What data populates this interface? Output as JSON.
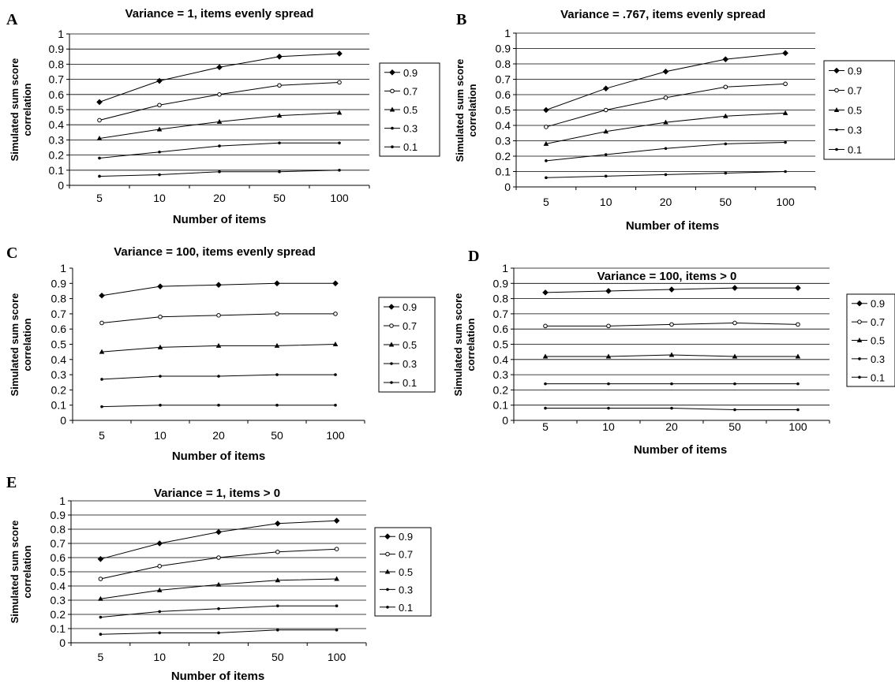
{
  "colors": {
    "line": "#000000",
    "grid": "#000000",
    "background": "#ffffff"
  },
  "chart_data": [
    {
      "panel": "A",
      "type": "line",
      "title": "Variance = 1, items evenly spread",
      "xlabel": "Number of items",
      "ylabel": [
        "Simulated sum score",
        "correlation"
      ],
      "categories": [
        "5",
        "10",
        "20",
        "50",
        "100"
      ],
      "yticks": [
        "0",
        "0.1",
        "0.2",
        "0.3",
        "0.4",
        "0.5",
        "0.6",
        "0.7",
        "0.8",
        "0.9",
        "1"
      ],
      "ylim": [
        0,
        1
      ],
      "grid": true,
      "legend_position": "right",
      "series": [
        {
          "name": "0.9",
          "marker": "diamond",
          "values": [
            0.55,
            0.69,
            0.78,
            0.85,
            0.87
          ]
        },
        {
          "name": "0.7",
          "marker": "circle",
          "values": [
            0.43,
            0.53,
            0.6,
            0.66,
            0.68
          ]
        },
        {
          "name": "0.5",
          "marker": "triangle",
          "values": [
            0.31,
            0.37,
            0.42,
            0.46,
            0.48
          ]
        },
        {
          "name": "0.3",
          "marker": "dot",
          "values": [
            0.18,
            0.22,
            0.26,
            0.28,
            0.28
          ]
        },
        {
          "name": "0.1",
          "marker": "dot",
          "values": [
            0.06,
            0.07,
            0.09,
            0.09,
            0.1
          ]
        }
      ]
    },
    {
      "panel": "B",
      "type": "line",
      "title": "Variance = .767, items evenly spread",
      "xlabel": "Number of items",
      "ylabel": [
        "Simulated sum score",
        "correlation"
      ],
      "categories": [
        "5",
        "10",
        "20",
        "50",
        "100"
      ],
      "yticks": [
        "0",
        "0.1",
        "0.2",
        "0.3",
        "0.4",
        "0.5",
        "0.6",
        "0.7",
        "0.8",
        "0.9",
        "1"
      ],
      "ylim": [
        0,
        1
      ],
      "grid": true,
      "legend_position": "right",
      "series": [
        {
          "name": "0.9",
          "marker": "diamond",
          "values": [
            0.5,
            0.64,
            0.75,
            0.83,
            0.87
          ]
        },
        {
          "name": "0.7",
          "marker": "circle",
          "values": [
            0.39,
            0.5,
            0.58,
            0.65,
            0.67
          ]
        },
        {
          "name": "0.5",
          "marker": "triangle",
          "values": [
            0.28,
            0.36,
            0.42,
            0.46,
            0.48
          ]
        },
        {
          "name": "0.3",
          "marker": "dot",
          "values": [
            0.17,
            0.21,
            0.25,
            0.28,
            0.29
          ]
        },
        {
          "name": "0.1",
          "marker": "dot",
          "values": [
            0.06,
            0.07,
            0.08,
            0.09,
            0.1
          ]
        }
      ]
    },
    {
      "panel": "C",
      "type": "line",
      "title": "Variance = 100, items evenly spread",
      "xlabel": "Number of items",
      "ylabel": [
        "Simulated sum score",
        "correlation"
      ],
      "categories": [
        "5",
        "10",
        "20",
        "50",
        "100"
      ],
      "yticks": [
        "0",
        "0.1",
        "0.2",
        "0.3",
        "0.4",
        "0.5",
        "0.6",
        "0.7",
        "0.8",
        "0.9",
        "1"
      ],
      "ylim": [
        0,
        1
      ],
      "grid": false,
      "legend_position": "right",
      "series": [
        {
          "name": "0.9",
          "marker": "diamond",
          "values": [
            0.82,
            0.88,
            0.89,
            0.9,
            0.9
          ]
        },
        {
          "name": "0.7",
          "marker": "circle",
          "values": [
            0.64,
            0.68,
            0.69,
            0.7,
            0.7
          ]
        },
        {
          "name": "0.5",
          "marker": "triangle",
          "values": [
            0.45,
            0.48,
            0.49,
            0.49,
            0.5
          ]
        },
        {
          "name": "0.3",
          "marker": "dot",
          "values": [
            0.27,
            0.29,
            0.29,
            0.3,
            0.3
          ]
        },
        {
          "name": "0.1",
          "marker": "dot",
          "values": [
            0.09,
            0.1,
            0.1,
            0.1,
            0.1
          ]
        }
      ]
    },
    {
      "panel": "D",
      "type": "line",
      "title": "Variance = 100, items > 0",
      "xlabel": "Number of items",
      "ylabel": [
        "Simulated sum score",
        "correlation"
      ],
      "categories": [
        "5",
        "10",
        "20",
        "50",
        "100"
      ],
      "yticks": [
        "0",
        "0.1",
        "0.2",
        "0.3",
        "0.4",
        "0.5",
        "0.6",
        "0.7",
        "0.8",
        "0.9",
        "1"
      ],
      "ylim": [
        0,
        1
      ],
      "grid": true,
      "legend_position": "right",
      "series": [
        {
          "name": "0.9",
          "marker": "diamond",
          "values": [
            0.84,
            0.85,
            0.86,
            0.87,
            0.87
          ]
        },
        {
          "name": "0.7",
          "marker": "circle",
          "values": [
            0.62,
            0.62,
            0.63,
            0.64,
            0.63
          ]
        },
        {
          "name": "0.5",
          "marker": "triangle",
          "values": [
            0.42,
            0.42,
            0.43,
            0.42,
            0.42
          ]
        },
        {
          "name": "0.3",
          "marker": "dot",
          "values": [
            0.24,
            0.24,
            0.24,
            0.24,
            0.24
          ]
        },
        {
          "name": "0.1",
          "marker": "dot",
          "values": [
            0.08,
            0.08,
            0.08,
            0.07,
            0.07
          ]
        }
      ]
    },
    {
      "panel": "E",
      "type": "line",
      "title": "Variance = 1, items > 0",
      "xlabel": "Number of items",
      "ylabel": [
        "Simulated sum score",
        "correlation"
      ],
      "categories": [
        "5",
        "10",
        "20",
        "50",
        "100"
      ],
      "yticks": [
        "0",
        "0.1",
        "0.2",
        "0.3",
        "0.4",
        "0.5",
        "0.6",
        "0.7",
        "0.8",
        "0.9",
        "1"
      ],
      "ylim": [
        0,
        1
      ],
      "grid": true,
      "legend_position": "right",
      "series": [
        {
          "name": "0.9",
          "marker": "diamond",
          "values": [
            0.59,
            0.7,
            0.78,
            0.84,
            0.86
          ]
        },
        {
          "name": "0.7",
          "marker": "circle",
          "values": [
            0.45,
            0.54,
            0.6,
            0.64,
            0.66
          ]
        },
        {
          "name": "0.5",
          "marker": "triangle",
          "values": [
            0.31,
            0.37,
            0.41,
            0.44,
            0.45
          ]
        },
        {
          "name": "0.3",
          "marker": "dot",
          "values": [
            0.18,
            0.22,
            0.24,
            0.26,
            0.26
          ]
        },
        {
          "name": "0.1",
          "marker": "dot",
          "values": [
            0.06,
            0.07,
            0.07,
            0.09,
            0.09
          ]
        }
      ]
    }
  ]
}
